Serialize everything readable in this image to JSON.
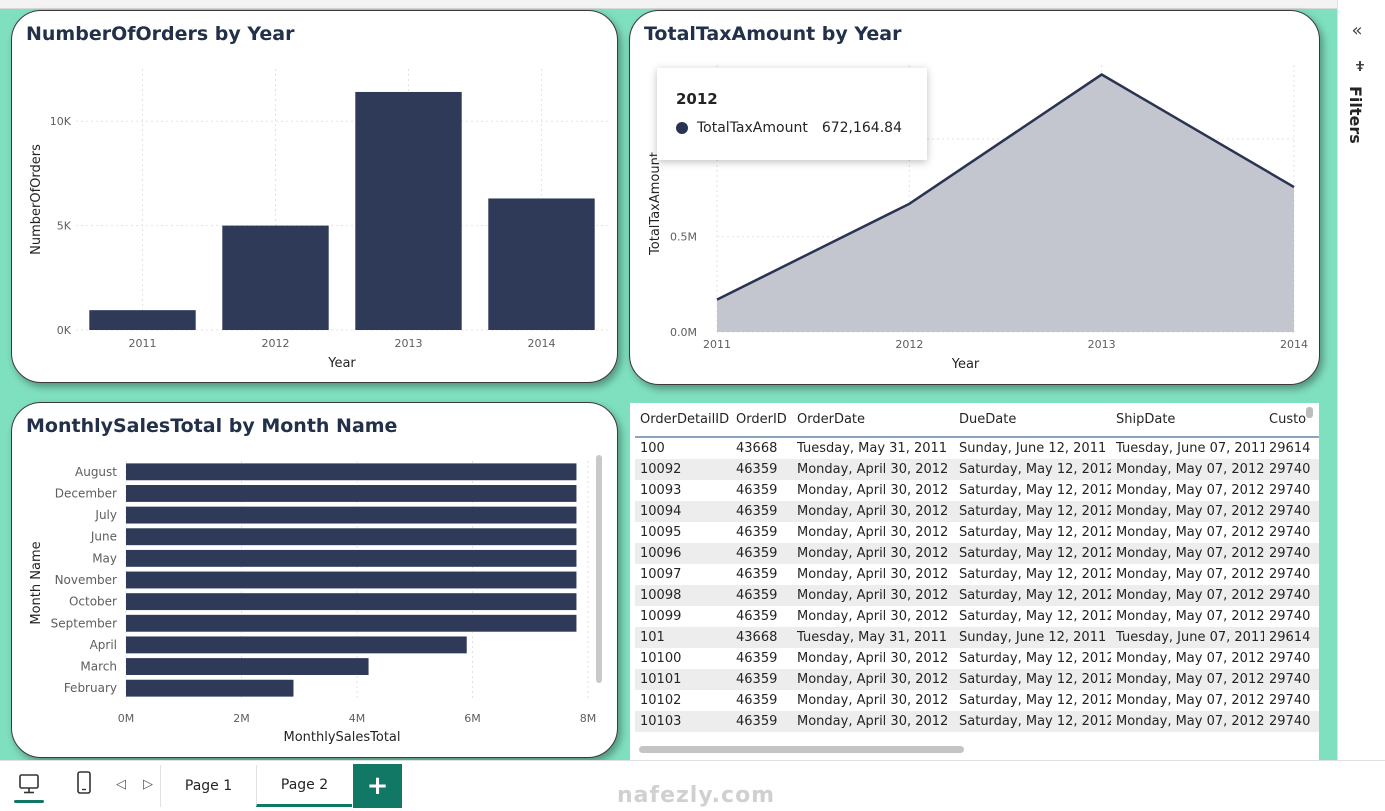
{
  "orders_chart": {
    "title": "NumberOfOrders by Year",
    "chart_data": {
      "type": "bar",
      "categories": [
        "2011",
        "2012",
        "2013",
        "2014"
      ],
      "values": [
        950,
        5000,
        11400,
        6300
      ],
      "xlabel": "Year",
      "ylabel": "NumberOfOrders",
      "ylim": [
        0,
        12500
      ],
      "yticks": [
        {
          "value": 0,
          "label": "0K"
        },
        {
          "value": 5000,
          "label": "5K"
        },
        {
          "value": 10000,
          "label": "10K"
        }
      ],
      "grid": true,
      "color": "#2e3a58"
    }
  },
  "tax_chart": {
    "title": "TotalTaxAmount by Year",
    "chart_data": {
      "type": "area",
      "x": [
        "2011",
        "2012",
        "2013",
        "2014"
      ],
      "values": [
        170000,
        672164.84,
        1350000,
        760000
      ],
      "xlabel": "Year",
      "ylabel": "TotalTaxAmount",
      "ylim": [
        0,
        1400000
      ],
      "yticks": [
        {
          "value": 0,
          "label": "0.0M"
        },
        {
          "value": 500000,
          "label": "0.5M"
        }
      ],
      "grid": true,
      "line_color": "#2a3452",
      "fill_color": "#c3c6cf"
    },
    "tooltip": {
      "year": "2012",
      "series": "TotalTaxAmount",
      "value": "672,164.84"
    }
  },
  "monthly_chart": {
    "title": "MonthlySalesTotal by Month Name",
    "chart_data": {
      "type": "bar",
      "orientation": "horizontal",
      "categories": [
        "August",
        "December",
        "July",
        "June",
        "May",
        "November",
        "October",
        "September",
        "April",
        "March",
        "February"
      ],
      "values": [
        7800000,
        7800000,
        7800000,
        7800000,
        7800000,
        7800000,
        7800000,
        7800000,
        5900000,
        4200000,
        2900000
      ],
      "xlabel": "MonthlySalesTotal",
      "ylabel": "Month Name",
      "xlim": [
        0,
        8000000
      ],
      "xticks": [
        {
          "value": 0,
          "label": "0M"
        },
        {
          "value": 2000000,
          "label": "2M"
        },
        {
          "value": 4000000,
          "label": "4M"
        },
        {
          "value": 6000000,
          "label": "6M"
        },
        {
          "value": 8000000,
          "label": "8M"
        }
      ],
      "grid": true,
      "color": "#2e3a58"
    }
  },
  "table": {
    "columns": [
      "OrderDetailID",
      "OrderID",
      "OrderDate",
      "DueDate",
      "ShipDate",
      "Custo"
    ],
    "rows": [
      [
        "100",
        "43668",
        "Tuesday, May 31, 2011",
        "Sunday, June 12, 2011",
        "Tuesday, June 07, 2011",
        "29614"
      ],
      [
        "10092",
        "46359",
        "Monday, April 30, 2012",
        "Saturday, May 12, 2012",
        "Monday, May 07, 2012",
        "29740"
      ],
      [
        "10093",
        "46359",
        "Monday, April 30, 2012",
        "Saturday, May 12, 2012",
        "Monday, May 07, 2012",
        "29740"
      ],
      [
        "10094",
        "46359",
        "Monday, April 30, 2012",
        "Saturday, May 12, 2012",
        "Monday, May 07, 2012",
        "29740"
      ],
      [
        "10095",
        "46359",
        "Monday, April 30, 2012",
        "Saturday, May 12, 2012",
        "Monday, May 07, 2012",
        "29740"
      ],
      [
        "10096",
        "46359",
        "Monday, April 30, 2012",
        "Saturday, May 12, 2012",
        "Monday, May 07, 2012",
        "29740"
      ],
      [
        "10097",
        "46359",
        "Monday, April 30, 2012",
        "Saturday, May 12, 2012",
        "Monday, May 07, 2012",
        "29740"
      ],
      [
        "10098",
        "46359",
        "Monday, April 30, 2012",
        "Saturday, May 12, 2012",
        "Monday, May 07, 2012",
        "29740"
      ],
      [
        "10099",
        "46359",
        "Monday, April 30, 2012",
        "Saturday, May 12, 2012",
        "Monday, May 07, 2012",
        "29740"
      ],
      [
        "101",
        "43668",
        "Tuesday, May 31, 2011",
        "Sunday, June 12, 2011",
        "Tuesday, June 07, 2011",
        "29614"
      ],
      [
        "10100",
        "46359",
        "Monday, April 30, 2012",
        "Saturday, May 12, 2012",
        "Monday, May 07, 2012",
        "29740"
      ],
      [
        "10101",
        "46359",
        "Monday, April 30, 2012",
        "Saturday, May 12, 2012",
        "Monday, May 07, 2012",
        "29740"
      ],
      [
        "10102",
        "46359",
        "Monday, April 30, 2012",
        "Saturday, May 12, 2012",
        "Monday, May 07, 2012",
        "29740"
      ],
      [
        "10103",
        "46359",
        "Monday, April 30, 2012",
        "Saturday, May 12, 2012",
        "Monday, May 07, 2012",
        "29740"
      ]
    ]
  },
  "filters": {
    "label": "Filters",
    "collapse_icon": "double-chevron-left-icon",
    "icon": "filter-icon"
  },
  "bottom_bar": {
    "desktop_icon": "desktop-icon",
    "phone_icon": "phone-icon",
    "prev_glyph": "◁",
    "next_glyph": "▷",
    "tabs": [
      {
        "label": "Page 1"
      },
      {
        "label": "Page 2"
      }
    ],
    "active_tab": "Page 2",
    "add_label": "+",
    "accent": "#117865"
  },
  "watermark": "nafezly.com"
}
